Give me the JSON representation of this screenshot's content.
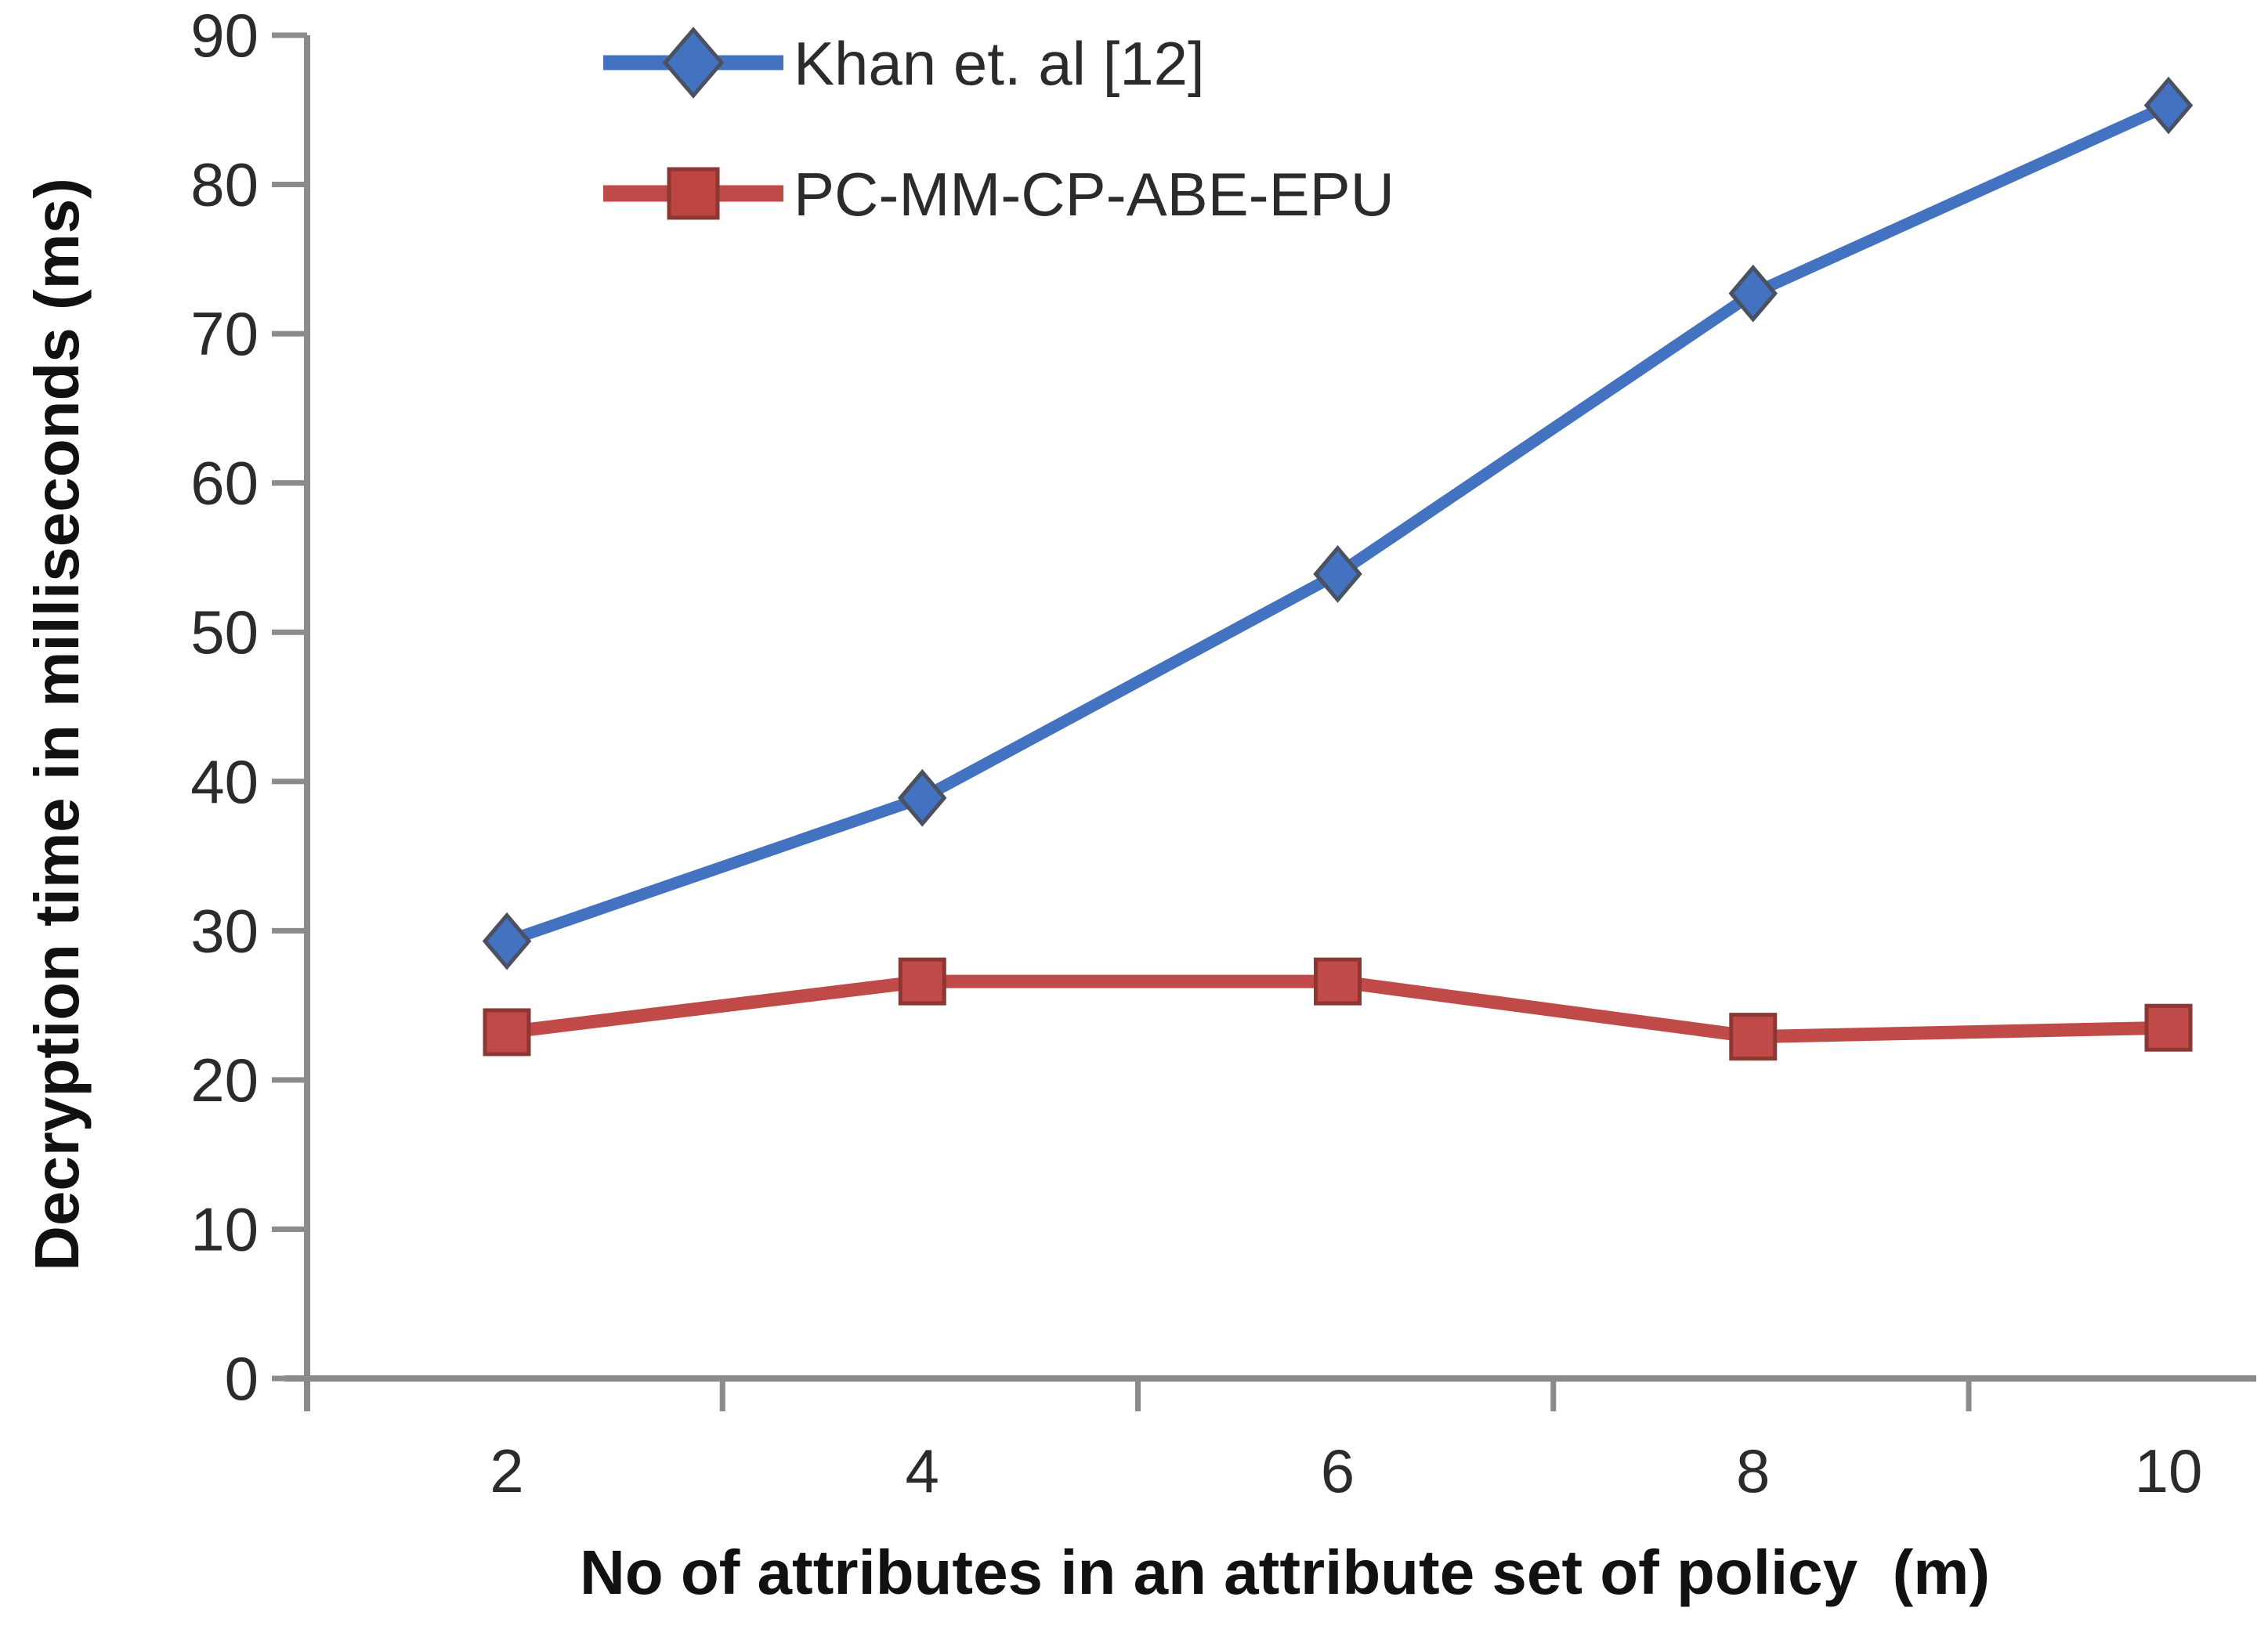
{
  "figure": {
    "background": "#ffffff"
  },
  "chart_data": {
    "type": "line",
    "x": [
      2,
      4,
      6,
      8,
      10
    ],
    "xticks": [
      2,
      4,
      6,
      8,
      10
    ],
    "yticks": [
      0,
      10,
      20,
      30,
      40,
      50,
      60,
      70,
      80,
      90
    ],
    "ylim": [
      0,
      90
    ],
    "grid": false,
    "xlabel": "No of attributes in an attribute set of policy  (m)",
    "ylabel": "Decryption time in milliseconds (ms)",
    "legend_position": "top-left-inside",
    "axis_color": "#8b8b8b",
    "tick_label_color": "#2b2b2b",
    "title_color": "#111111",
    "series": [
      {
        "name": "Khan et. al [12]",
        "marker": "diamond",
        "color": "#4372c0",
        "marker_stroke": "#4a5160",
        "values": [
          29.3,
          38.9,
          53.9,
          72.7,
          85.3
        ]
      },
      {
        "name": "PC-MM-CP-ABE-EPU",
        "marker": "square",
        "color": "#c04a47",
        "marker_stroke": "#8c3734",
        "values": [
          23.2,
          26.6,
          26.6,
          22.9,
          23.5
        ]
      }
    ]
  }
}
